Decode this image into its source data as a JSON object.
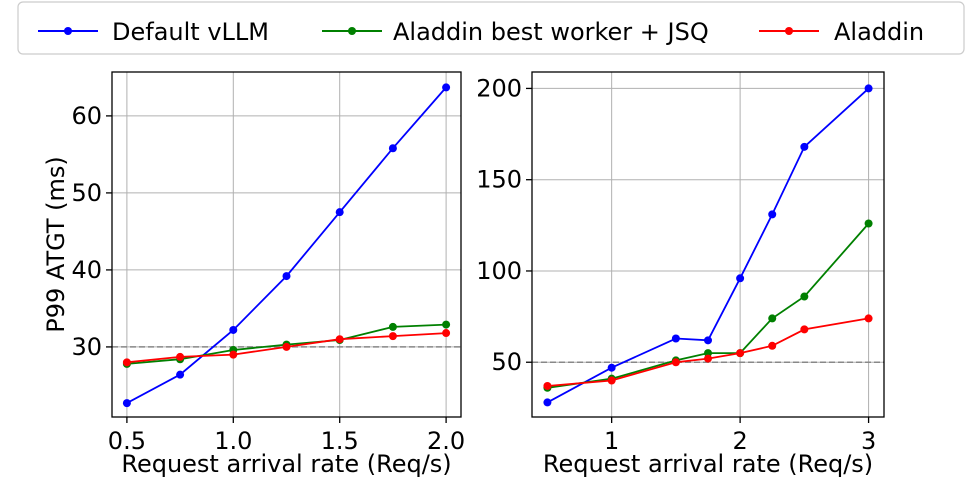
{
  "legend": {
    "placement": "top",
    "entries": [
      {
        "label": "Default vLLM",
        "color": "#0000ff"
      },
      {
        "label": "Aladdin best worker + JSQ",
        "color": "#008000"
      },
      {
        "label": "Aladdin",
        "color": "#ff0000"
      }
    ]
  },
  "chart_data": [
    {
      "type": "line",
      "title": "",
      "xlabel": "Request arrival rate (Req/s)",
      "ylabel": "P99 ATGT (ms)",
      "xlim": [
        0.43,
        2.07
      ],
      "ylim": [
        20.9,
        65.7
      ],
      "xticks": [
        0.5,
        1.0,
        1.5,
        2.0
      ],
      "xtick_labels": [
        "0.5",
        "1.0",
        "1.5",
        "2.0"
      ],
      "yticks": [
        30,
        40,
        50,
        60
      ],
      "ytick_labels": [
        "30",
        "40",
        "50",
        "60"
      ],
      "grid": true,
      "reference_line": {
        "y": 30,
        "style": "dashed",
        "color": "#888888"
      },
      "x": [
        0.5,
        0.75,
        1.0,
        1.25,
        1.5,
        1.75,
        2.0
      ],
      "series": [
        {
          "name": "Default vLLM",
          "color": "#0000ff",
          "values": [
            22.7,
            26.4,
            32.2,
            39.2,
            47.5,
            55.8,
            63.7
          ]
        },
        {
          "name": "Aladdin best worker + JSQ",
          "color": "#008000",
          "values": [
            27.8,
            28.4,
            29.6,
            30.3,
            30.9,
            32.6,
            32.9
          ]
        },
        {
          "name": "Aladdin",
          "color": "#ff0000",
          "values": [
            28.0,
            28.7,
            29.0,
            30.0,
            31.0,
            31.4,
            31.8
          ]
        }
      ]
    },
    {
      "type": "line",
      "title": "",
      "xlabel": "Request arrival rate (Req/s)",
      "ylabel": "",
      "xlim": [
        0.38,
        3.12
      ],
      "ylim": [
        20,
        209
      ],
      "xticks": [
        1,
        2,
        3
      ],
      "xtick_labels": [
        "1",
        "2",
        "3"
      ],
      "yticks": [
        50,
        100,
        150,
        200
      ],
      "ytick_labels": [
        "50",
        "100",
        "150",
        "200"
      ],
      "grid": true,
      "reference_line": {
        "y": 50,
        "style": "dashed",
        "color": "#888888"
      },
      "x": [
        0.5,
        1.0,
        1.5,
        1.75,
        2.0,
        2.25,
        2.5,
        3.0
      ],
      "series": [
        {
          "name": "Default vLLM",
          "color": "#0000ff",
          "values": [
            28,
            47,
            63,
            62,
            96,
            131,
            168,
            200
          ]
        },
        {
          "name": "Aladdin best worker + JSQ",
          "color": "#008000",
          "values": [
            36,
            41,
            51,
            55,
            55,
            74,
            86,
            126
          ]
        },
        {
          "name": "Aladdin",
          "color": "#ff0000",
          "values": [
            37,
            40,
            50,
            52,
            55,
            59,
            68,
            74
          ]
        }
      ]
    }
  ]
}
